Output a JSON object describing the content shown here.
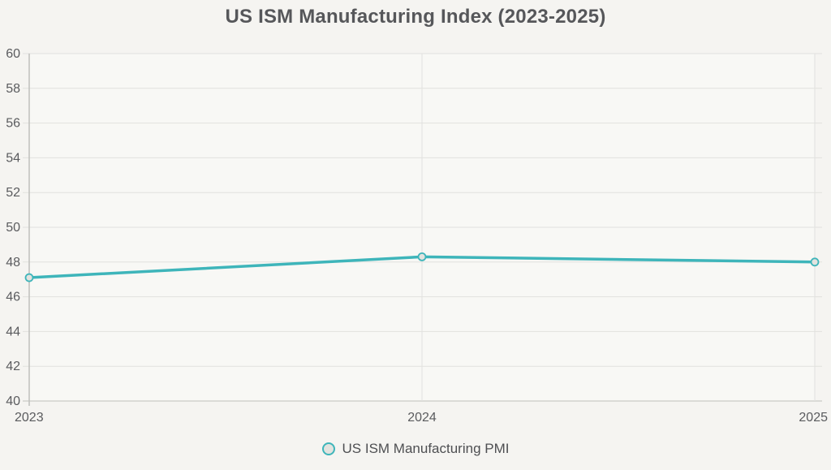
{
  "title": "US ISM Manufacturing Index (2023-2025)",
  "legend": {
    "label": "US ISM Manufacturing PMI"
  },
  "colors": {
    "background": "#f5f4f1",
    "plot_background": "#f8f8f5",
    "line": "#3eb5ba",
    "marker_fill": "#e3e3df",
    "grid": "#e1e1de",
    "axis": "#bfbfbc",
    "text": "#5a5b5e",
    "title_text": "#56575a"
  },
  "chart_data": {
    "type": "line",
    "title": "US ISM Manufacturing Index (2023-2025)",
    "x": [
      2023,
      2024,
      2025
    ],
    "xtick_labels": [
      "2023",
      "2024",
      "2025"
    ],
    "series": [
      {
        "name": "US ISM Manufacturing PMI",
        "values": [
          47.1,
          48.3,
          48.0
        ]
      }
    ],
    "xlabel": "",
    "ylabel": "",
    "ylim": [
      40,
      60
    ],
    "yticks": [
      40,
      42,
      44,
      46,
      48,
      50,
      52,
      54,
      56,
      58,
      60
    ],
    "grid": true,
    "legend_position": "bottom"
  }
}
